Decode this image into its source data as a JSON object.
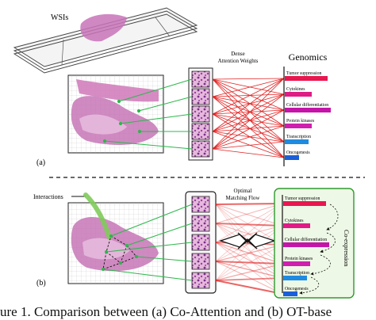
{
  "panel_a": {
    "wsis_label": "WSIs",
    "attention_label_1": "Dense",
    "attention_label_2": "Attention Weights",
    "genomics_title": "Genomics",
    "panel_label": "(a)",
    "genes": [
      "Tumor suppression",
      "Cytokines",
      "Cellular differentiation",
      "Protein kinases",
      "Transcription",
      "Oncogenesis"
    ]
  },
  "panel_b": {
    "interactions_label": "Interactions",
    "flow_label_1": "Optimal",
    "flow_label_2": "Matching Flow",
    "coexpression_label": "Co-expression",
    "panel_label": "(b)",
    "genes": [
      "Tumor suppression",
      "Cytokines",
      "Cellular differentiation",
      "Protein kinases",
      "Transcription",
      "Oncogenesis"
    ]
  },
  "caption": "ure 1. Comparison between (a) Co-Attention and (b) OT-base",
  "colors": {
    "attention_red": "#e02020",
    "tissue_pink": "#d98cc3",
    "tumor_bar": "#e8174f",
    "cytokine_bar": "#e01b86",
    "differentiation_bar": "#c415a8",
    "kinase_bar": "#cf1fae",
    "transcription_bar": "#1f8be0",
    "oncogenesis_bar": "#1a5fd8",
    "link_green": "#2bb84a",
    "coexp_bg": "#eef8e6",
    "coexp_border": "#2e9a2e"
  }
}
